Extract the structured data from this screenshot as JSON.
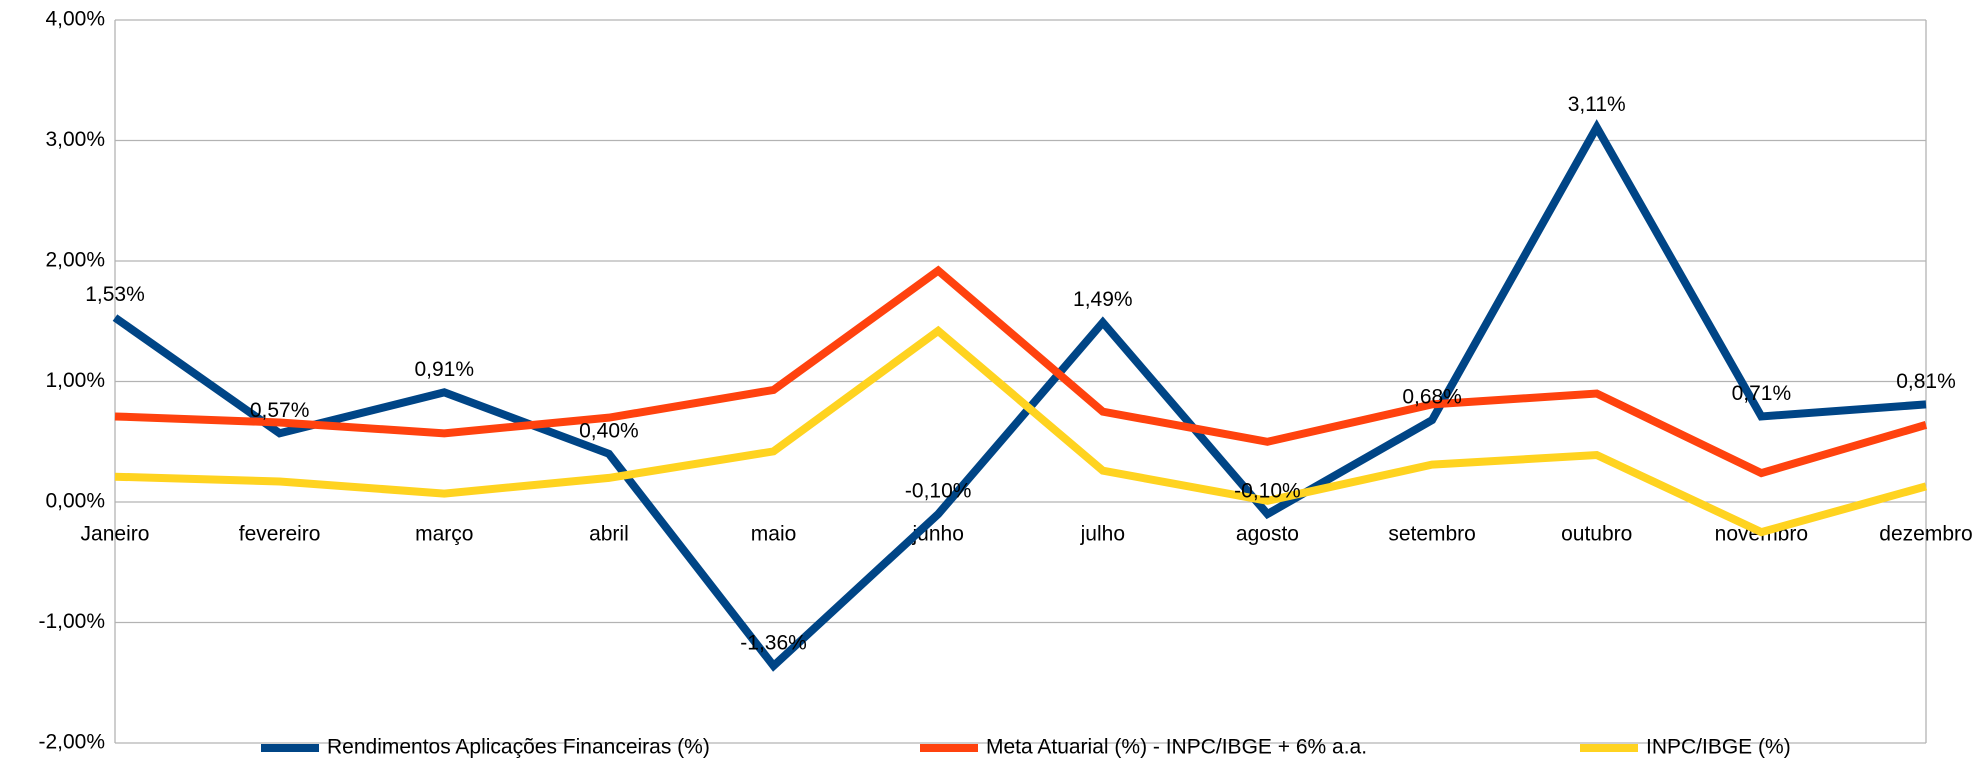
{
  "chart_data": {
    "type": "line",
    "categories": [
      "Janeiro",
      "fevereiro",
      "março",
      "abril",
      "maio",
      "junho",
      "julho",
      "agosto",
      "setembro",
      "outubro",
      "novembro",
      "dezembro"
    ],
    "series": [
      {
        "name": "Rendimentos Aplicações Financeiras (%)",
        "color": "#004586",
        "values": [
          1.53,
          0.57,
          0.91,
          0.4,
          -1.36,
          -0.1,
          1.49,
          -0.1,
          0.68,
          3.11,
          0.71,
          0.81
        ],
        "value_labels": [
          "1,53%",
          "0,57%",
          "0,91%",
          "0,40%",
          "-1,36%",
          "-0,10%",
          "1,49%",
          "-0,10%",
          "0,68%",
          "3,11%",
          "0,71%",
          "0,81%"
        ]
      },
      {
        "name": "Meta Atuarial (%) - INPC/IBGE + 6% a.a.",
        "color": "#ff420e",
        "values": [
          0.71,
          0.66,
          0.57,
          0.7,
          0.93,
          1.92,
          0.75,
          0.5,
          0.81,
          0.9,
          0.24,
          0.64
        ]
      },
      {
        "name": "INPC/IBGE (%)",
        "color": "#ffd320",
        "values": [
          0.21,
          0.17,
          0.07,
          0.2,
          0.42,
          1.42,
          0.26,
          0.01,
          0.31,
          0.39,
          -0.25,
          0.13
        ]
      }
    ],
    "ylim": [
      -2,
      4
    ],
    "yticks": [
      {
        "value": -2,
        "label": "-2,00%"
      },
      {
        "value": -1,
        "label": "-1,00%"
      },
      {
        "value": 0,
        "label": "0,00%"
      },
      {
        "value": 1,
        "label": "1,00%"
      },
      {
        "value": 2,
        "label": "2,00%"
      },
      {
        "value": 3,
        "label": "3,00%"
      },
      {
        "value": 4,
        "label": "4,00%"
      }
    ],
    "grid": true,
    "legend": "bottom"
  }
}
